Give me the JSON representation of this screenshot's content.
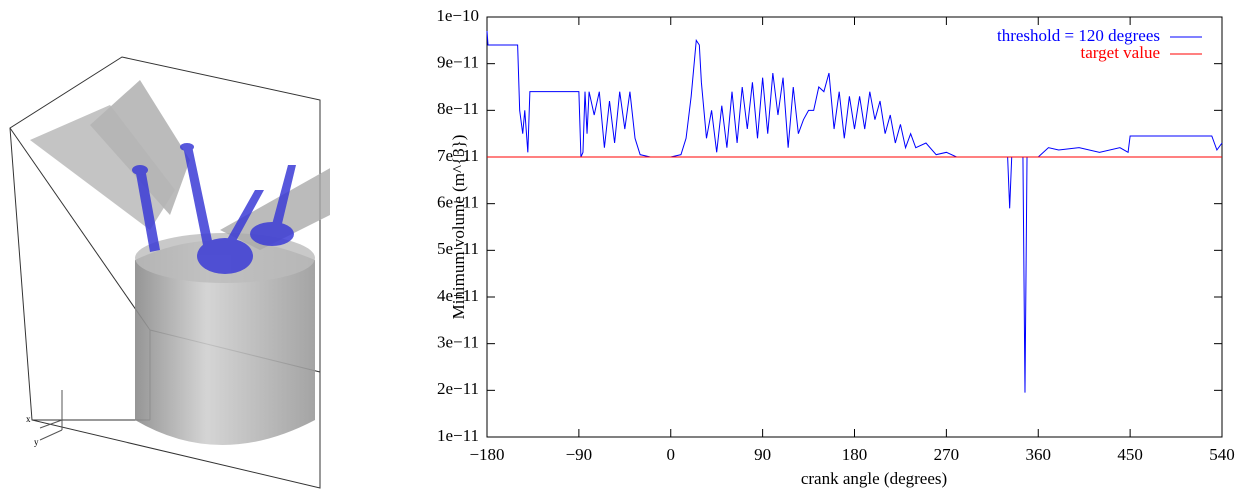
{
  "render": {
    "axis_labels": [
      "x",
      "y"
    ]
  },
  "chart_data": {
    "type": "line",
    "xlabel": "crank angle (degrees)",
    "ylabel": "Minimum volume (m^{3})",
    "xlim": [
      -180,
      540
    ],
    "xticks": [
      {
        "value": -180,
        "label": "−180"
      },
      {
        "value": -90,
        "label": "−90"
      },
      0,
      90,
      180,
      270,
      360,
      450,
      540
    ],
    "ylim": [
      1e-11,
      1e-10
    ],
    "yticks": [
      {
        "value": 1e-11,
        "label": "1e−11"
      },
      {
        "value": 2e-11,
        "label": "2e−11"
      },
      {
        "value": 3e-11,
        "label": "3e−11"
      },
      {
        "value": 4e-11,
        "label": "4e−11"
      },
      {
        "value": 5e-11,
        "label": "5e−11"
      },
      {
        "value": 6e-11,
        "label": "6e−11"
      },
      {
        "value": 7e-11,
        "label": "7e−11"
      },
      {
        "value": 8e-11,
        "label": "8e−11"
      },
      {
        "value": 9e-11,
        "label": "9e−11"
      },
      {
        "value": 1e-10,
        "label": "1e−10"
      }
    ],
    "legend": "upper right",
    "x": [
      -180,
      -179,
      -175,
      -150,
      -148,
      -145,
      -143,
      -140,
      -138,
      -135,
      -120,
      -100,
      -90,
      -88,
      -86,
      -84,
      -82,
      -80,
      -75,
      -70,
      -65,
      -60,
      -55,
      -50,
      -45,
      -40,
      -35,
      -30,
      -20,
      -10,
      0,
      10,
      15,
      20,
      25,
      28,
      30,
      35,
      40,
      45,
      50,
      55,
      60,
      65,
      70,
      75,
      80,
      85,
      90,
      95,
      100,
      105,
      110,
      115,
      120,
      125,
      130,
      135,
      140,
      145,
      150,
      155,
      160,
      165,
      170,
      175,
      180,
      185,
      190,
      195,
      200,
      205,
      210,
      215,
      220,
      225,
      230,
      235,
      240,
      250,
      260,
      270,
      280,
      300,
      320,
      330,
      332,
      334,
      345,
      347,
      349,
      360,
      370,
      380,
      400,
      420,
      440,
      448,
      450,
      470,
      500,
      530,
      535,
      540
    ],
    "series": [
      {
        "name": "threshold = 120 degrees",
        "color": "#0000ff",
        "values": [
          9.7e-11,
          9.4e-11,
          9.4e-11,
          9.4e-11,
          8e-11,
          7.5e-11,
          8e-11,
          7.1e-11,
          8.4e-11,
          8.4e-11,
          8.4e-11,
          8.4e-11,
          8.4e-11,
          7e-11,
          7.1e-11,
          8.4e-11,
          7.5e-11,
          8.4e-11,
          7.9e-11,
          8.4e-11,
          7.2e-11,
          8.2e-11,
          7.3e-11,
          8.4e-11,
          7.6e-11,
          8.4e-11,
          7.4e-11,
          7.05e-11,
          7e-11,
          7e-11,
          7e-11,
          7.05e-11,
          7.4e-11,
          8.3e-11,
          9.5e-11,
          9.4e-11,
          8.6e-11,
          7.4e-11,
          8e-11,
          7.1e-11,
          8.1e-11,
          7.2e-11,
          8.4e-11,
          7.3e-11,
          8.5e-11,
          7.6e-11,
          8.6e-11,
          7.4e-11,
          8.7e-11,
          7.5e-11,
          8.8e-11,
          7.9e-11,
          8.7e-11,
          7.2e-11,
          8.5e-11,
          7.5e-11,
          7.8e-11,
          8e-11,
          8e-11,
          8.5e-11,
          8.4e-11,
          8.8e-11,
          7.6e-11,
          8.4e-11,
          7.4e-11,
          8.3e-11,
          7.6e-11,
          8.3e-11,
          7.6e-11,
          8.4e-11,
          7.8e-11,
          8.2e-11,
          7.5e-11,
          7.9e-11,
          7.3e-11,
          7.7e-11,
          7.2e-11,
          7.5e-11,
          7.2e-11,
          7.3e-11,
          7.05e-11,
          7.1e-11,
          7e-11,
          7e-11,
          7e-11,
          7e-11,
          5.9e-11,
          7e-11,
          7e-11,
          1.95e-11,
          7e-11,
          7e-11,
          7.2e-11,
          7.15e-11,
          7.2e-11,
          7.1e-11,
          7.2e-11,
          7.1e-11,
          7.45e-11,
          7.45e-11,
          7.45e-11,
          7.45e-11,
          7.15e-11,
          7.3e-11
        ]
      },
      {
        "name": "target value",
        "color": "#ff0000",
        "values": [
          7e-11,
          7e-11,
          7e-11,
          7e-11,
          7e-11,
          7e-11,
          7e-11,
          7e-11,
          7e-11,
          7e-11,
          7e-11,
          7e-11,
          7e-11,
          7e-11,
          7e-11,
          7e-11,
          7e-11,
          7e-11,
          7e-11,
          7e-11,
          7e-11,
          7e-11,
          7e-11,
          7e-11,
          7e-11,
          7e-11,
          7e-11,
          7e-11,
          7e-11,
          7e-11,
          7e-11,
          7e-11,
          7e-11,
          7e-11,
          7e-11,
          7e-11,
          7e-11,
          7e-11,
          7e-11,
          7e-11,
          7e-11,
          7e-11,
          7e-11,
          7e-11,
          7e-11,
          7e-11,
          7e-11,
          7e-11,
          7e-11,
          7e-11,
          7e-11,
          7e-11,
          7e-11,
          7e-11,
          7e-11,
          7e-11,
          7e-11,
          7e-11,
          7e-11,
          7e-11,
          7e-11,
          7e-11,
          7e-11,
          7e-11,
          7e-11,
          7e-11,
          7e-11,
          7e-11,
          7e-11,
          7e-11,
          7e-11,
          7e-11,
          7e-11,
          7e-11,
          7e-11,
          7e-11,
          7e-11,
          7e-11,
          7e-11,
          7e-11,
          7e-11,
          7e-11,
          7e-11,
          7e-11,
          7e-11,
          7e-11,
          7e-11,
          7e-11,
          7e-11,
          7e-11,
          7e-11,
          7e-11,
          7e-11,
          7e-11,
          7e-11,
          7e-11,
          7e-11,
          7e-11,
          7e-11,
          7e-11,
          7e-11,
          7e-11,
          7e-11,
          7e-11
        ]
      }
    ]
  }
}
